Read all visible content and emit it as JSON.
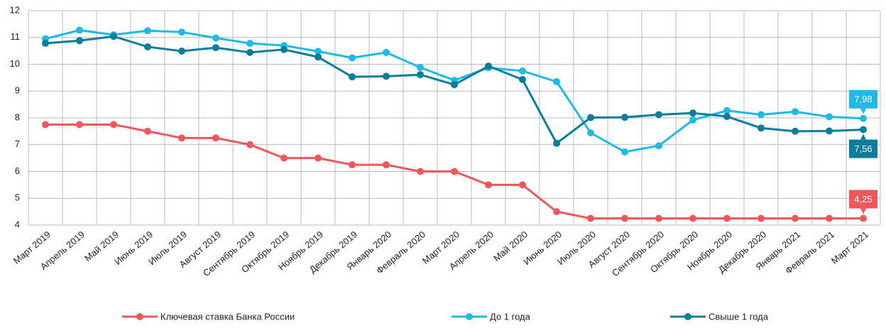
{
  "chart_data": {
    "type": "line",
    "categories": [
      "Март 2019",
      "Апрель 2019",
      "Май 2019",
      "Июнь 2019",
      "Июль 2019",
      "Август 2019",
      "Сентябрь 2019",
      "Октябрь 2019",
      "Ноябрь 2019",
      "Декабрь 2019",
      "Январь 2020",
      "Февраль 2020",
      "Март 2020",
      "Апрель 2020",
      "Май 2020",
      "Июнь 2020",
      "Июль 2020",
      "Август 2020",
      "Сентябрь 2020",
      "Октябрь 2020",
      "Ноябрь 2020",
      "Декабрь 2020",
      "Январь 2021",
      "Февраль 2021",
      "Март 2021"
    ],
    "series": [
      {
        "name": "Ключевая ставка Банка России",
        "color": "#f0565a",
        "values": [
          7.75,
          7.75,
          7.75,
          7.5,
          7.25,
          7.25,
          7.0,
          6.5,
          6.5,
          6.25,
          6.25,
          6.0,
          6.0,
          5.5,
          5.5,
          4.5,
          4.25,
          4.25,
          4.25,
          4.25,
          4.25,
          4.25,
          4.25,
          4.25,
          4.25
        ],
        "value_labels": [
          null,
          null,
          null,
          null,
          null,
          null,
          null,
          null,
          null,
          null,
          null,
          null,
          null,
          null,
          null,
          null,
          null,
          null,
          null,
          null,
          null,
          null,
          null,
          null,
          "4,25"
        ]
      },
      {
        "name": "До 1 года",
        "color": "#1fb9e8",
        "values": [
          10.95,
          11.27,
          11.1,
          11.25,
          11.2,
          10.98,
          10.78,
          10.7,
          10.48,
          10.24,
          10.44,
          9.88,
          9.4,
          9.87,
          9.75,
          9.35,
          7.44,
          6.73,
          6.96,
          7.92,
          8.27,
          8.12,
          8.23,
          8.04,
          7.98
        ],
        "value_labels": [
          null,
          null,
          null,
          null,
          null,
          null,
          null,
          null,
          null,
          null,
          null,
          null,
          null,
          null,
          null,
          null,
          null,
          null,
          null,
          null,
          null,
          null,
          null,
          null,
          "7,98"
        ]
      },
      {
        "name": "Свыше 1 года",
        "color": "#0a7d9c",
        "values": [
          10.78,
          10.88,
          11.04,
          10.65,
          10.49,
          10.62,
          10.44,
          10.55,
          10.27,
          9.53,
          9.55,
          9.61,
          9.24,
          9.93,
          9.43,
          7.05,
          8.01,
          8.02,
          8.12,
          8.18,
          8.05,
          7.62,
          7.5,
          7.51,
          7.56
        ],
        "value_labels": [
          null,
          null,
          null,
          null,
          null,
          null,
          null,
          null,
          null,
          null,
          null,
          null,
          null,
          null,
          null,
          null,
          null,
          null,
          null,
          null,
          null,
          null,
          null,
          null,
          "7,56"
        ]
      }
    ],
    "ylim": [
      4,
      12
    ],
    "yticks": [
      4,
      5,
      6,
      7,
      8,
      9,
      10,
      11,
      12
    ],
    "grid": true
  }
}
